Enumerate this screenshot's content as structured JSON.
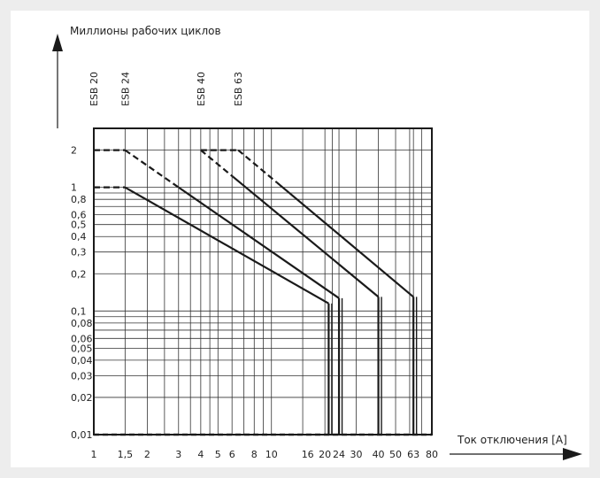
{
  "chart_data": {
    "type": "line",
    "ylabel": "Миллионы рабочих циклов",
    "xlabel": "Ток отключения [A]",
    "x_scale": "log",
    "y_scale": "log",
    "xlim": [
      1,
      80
    ],
    "ylim": [
      0.01,
      3
    ],
    "x_ticks": [
      {
        "value": 1,
        "label": "1"
      },
      {
        "value": 1.5,
        "label": "1,5"
      },
      {
        "value": 2,
        "label": "2"
      },
      {
        "value": 3,
        "label": "3"
      },
      {
        "value": 4,
        "label": "4"
      },
      {
        "value": 5,
        "label": "5"
      },
      {
        "value": 6,
        "label": "6"
      },
      {
        "value": 8,
        "label": "8"
      },
      {
        "value": 10,
        "label": "10"
      },
      {
        "value": 16,
        "label": "16"
      },
      {
        "value": 20,
        "label": "20"
      },
      {
        "value": 24,
        "label": "24"
      },
      {
        "value": 30,
        "label": "30"
      },
      {
        "value": 40,
        "label": "40"
      },
      {
        "value": 50,
        "label": "50"
      },
      {
        "value": 63,
        "label": "63"
      },
      {
        "value": 80,
        "label": "80"
      }
    ],
    "x_gridlines": [
      1,
      1.5,
      2,
      2.5,
      3,
      3.5,
      4,
      4.5,
      5,
      6,
      7,
      8,
      9,
      10,
      15,
      20,
      22,
      24,
      30,
      40,
      50,
      60,
      63,
      70,
      80
    ],
    "y_ticks": [
      {
        "value": 2,
        "label": "2"
      },
      {
        "value": 1,
        "label": "1"
      },
      {
        "value": 0.8,
        "label": "0,8"
      },
      {
        "value": 0.6,
        "label": "0,6"
      },
      {
        "value": 0.5,
        "label": "0,5"
      },
      {
        "value": 0.4,
        "label": "0,4"
      },
      {
        "value": 0.3,
        "label": "0,3"
      },
      {
        "value": 0.2,
        "label": "0,2"
      },
      {
        "value": 0.1,
        "label": "0,1"
      },
      {
        "value": 0.08,
        "label": "0,08"
      },
      {
        "value": 0.06,
        "label": "0,06"
      },
      {
        "value": 0.05,
        "label": "0,05"
      },
      {
        "value": 0.04,
        "label": "0,04"
      },
      {
        "value": 0.03,
        "label": "0,03"
      },
      {
        "value": 0.02,
        "label": "0,02"
      },
      {
        "value": 0.01,
        "label": "0,01"
      }
    ],
    "y_gridlines": [
      2,
      1,
      0.9,
      0.8,
      0.7,
      0.6,
      0.5,
      0.4,
      0.3,
      0.2,
      0.1,
      0.09,
      0.08,
      0.07,
      0.06,
      0.05,
      0.04,
      0.03,
      0.02,
      0.01
    ],
    "grid": true,
    "series": [
      {
        "name": "ESB 20",
        "label_x": 1,
        "points": [
          [
            1,
            1
          ],
          [
            1.5,
            1
          ],
          [
            21,
            0.115
          ],
          [
            21,
            0.01
          ]
        ],
        "dashed_segments": [
          [
            0,
            1
          ]
        ]
      },
      {
        "name": "ESB 24",
        "label_x": 1.5,
        "points": [
          [
            1,
            2
          ],
          [
            1.5,
            2
          ],
          [
            3,
            1
          ],
          [
            24,
            0.127
          ],
          [
            24,
            0.01
          ]
        ],
        "dashed_segments": [
          [
            0,
            1
          ],
          [
            1,
            2
          ]
        ]
      },
      {
        "name": "ESB 40",
        "label_x": 4,
        "points": [
          [
            4,
            2
          ],
          [
            40,
            0.13
          ],
          [
            40,
            0.01
          ]
        ],
        "dashed_segments": [
          [
            0,
            1
          ]
        ],
        "dashed_fraction_first": 0.18
      },
      {
        "name": "ESB 63",
        "label_x": 6.5,
        "points": [
          [
            4,
            2
          ],
          [
            6.5,
            2
          ],
          [
            63,
            0.13
          ],
          [
            63,
            0.01
          ]
        ],
        "dashed_segments": [
          [
            0,
            1
          ]
        ],
        "dashed_fraction_second": 0.22
      }
    ],
    "baseline_dashes": [
      [
        1,
        80
      ]
    ]
  }
}
